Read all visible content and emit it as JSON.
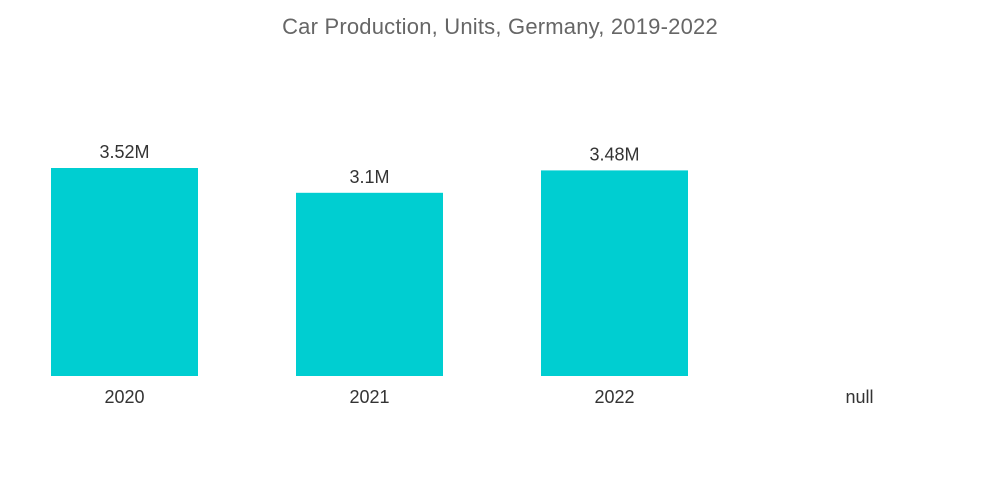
{
  "colors": {
    "bar": "#00CED1",
    "text": "#333333",
    "title": "#666666"
  },
  "chart_data": {
    "type": "bar",
    "title": "Car Production, Units, Germany, 2019-2022",
    "xlabel": "",
    "ylabel": "",
    "categories": [
      "2020",
      "2021",
      "2022",
      "null"
    ],
    "values": [
      3520000,
      3100000,
      3480000,
      null
    ],
    "data_labels": [
      "3.52M",
      "3.1M",
      "3.48M",
      ""
    ],
    "ylim": [
      0,
      3520000
    ],
    "grid": false,
    "legend": "none"
  }
}
